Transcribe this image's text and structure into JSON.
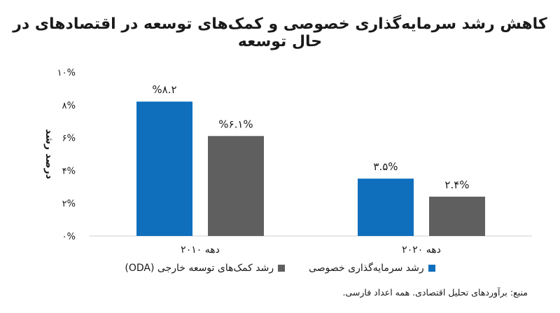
{
  "chart_data": {
    "type": "bar",
    "title": "کاهش رشد سرمایه‌گذاری خصوصی و کمک‌های توسعه در اقتصادهای در حال توسعه",
    "ylabel": "درصد رشد",
    "xlabel": "",
    "ylim": [
      0,
      10
    ],
    "yticks": [
      0,
      2,
      4,
      6,
      8,
      10
    ],
    "ytick_labels": [
      "۰%",
      "۲%",
      "۴%",
      "۶%",
      "۸%",
      "۱۰%"
    ],
    "categories": [
      "دهه ۲۰۱۰",
      "دهه ۲۰۲۰"
    ],
    "series": [
      {
        "name": "رشد سرمایه‌گذاری خصوصی",
        "color": "#0f6fbd",
        "values": [
          8.2,
          3.5
        ],
        "labels": [
          "%۸.۲",
          "۳.۵%"
        ]
      },
      {
        "name": "رشد کمک‌های توسعه خارجی (ODA)",
        "color": "#5f5f5f",
        "values": [
          6.1,
          2.4
        ],
        "labels": [
          "%۶.۱%",
          "۲.۴%"
        ]
      }
    ],
    "grid": false,
    "legend_position": "bottom"
  },
  "source": "منبع: برآوردهای تحلیل اقتصادی. همه اعداد فارسی."
}
